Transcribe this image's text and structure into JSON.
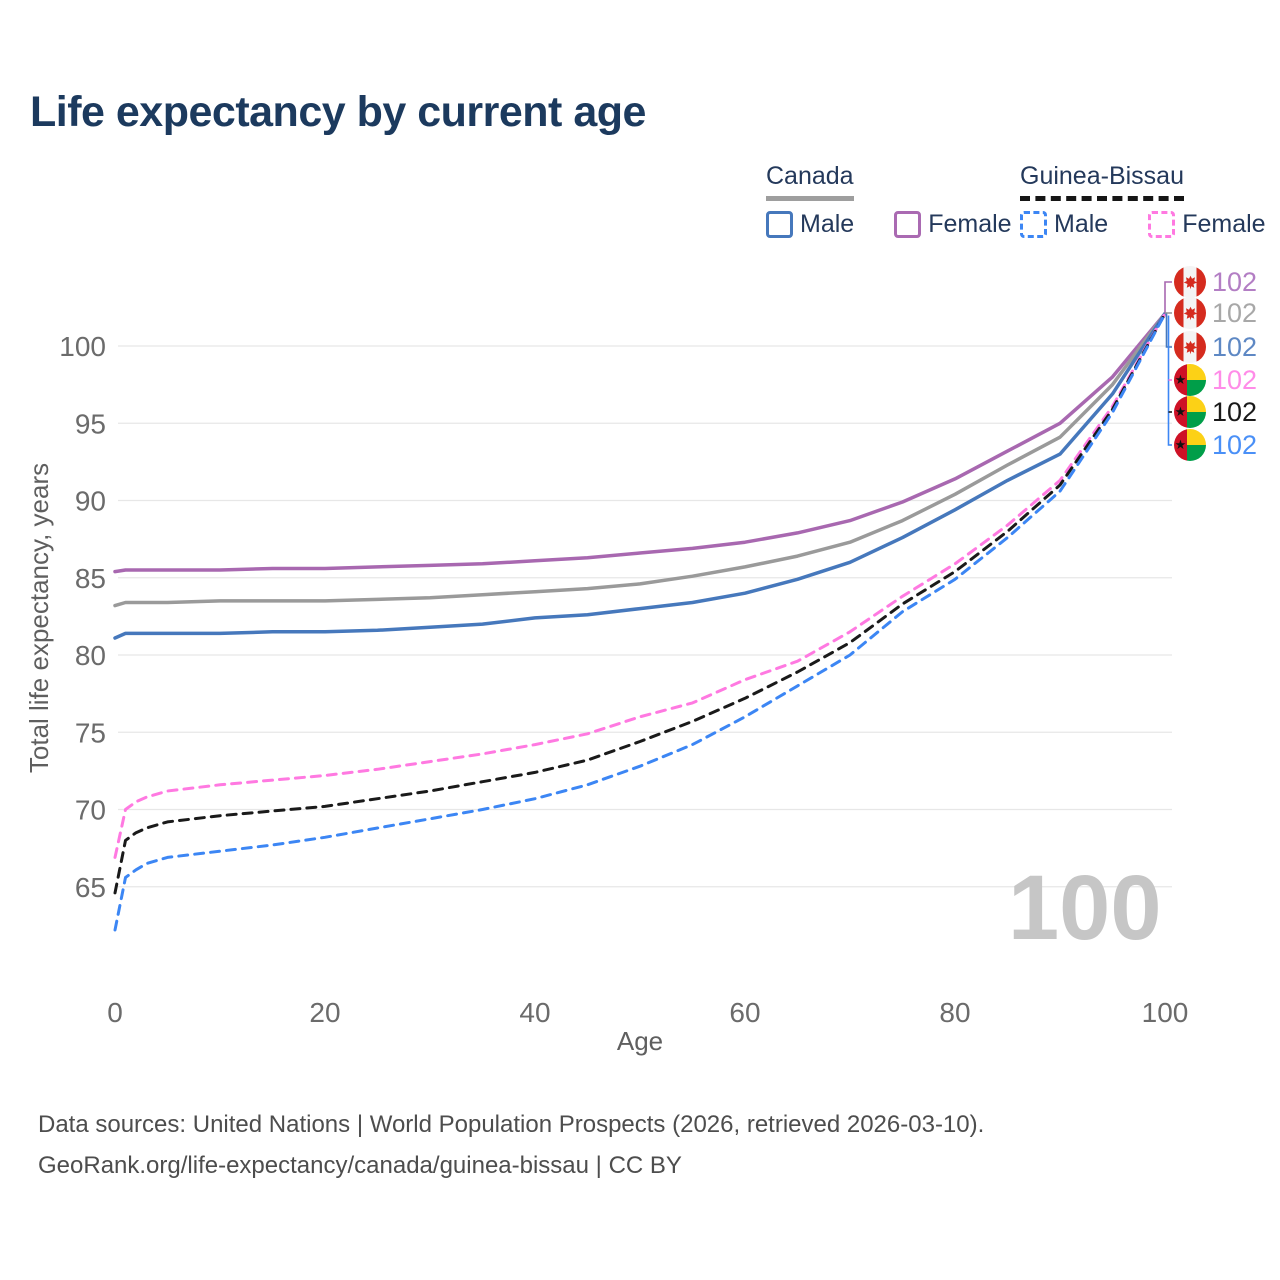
{
  "title": "Life expectancy by current age",
  "legend": {
    "groups": [
      {
        "label": "Canada",
        "line_style": "solid",
        "underline_color": "#9e9e9e",
        "items": [
          {
            "label": "Male",
            "color": "#4678bc",
            "dash": false
          },
          {
            "label": "Female",
            "color": "#aa6ab2",
            "dash": false
          }
        ]
      },
      {
        "label": "Guinea-Bissau",
        "line_style": "dashed",
        "underline_color": "#161616",
        "items": [
          {
            "label": "Male",
            "color": "#3c86f4",
            "dash": true
          },
          {
            "label": "Female",
            "color": "#ff79e1",
            "dash": true
          }
        ]
      }
    ]
  },
  "chart_data": {
    "type": "line",
    "title": "Life expectancy by current age",
    "xlabel": "Age",
    "ylabel": "Total life expectancy, years",
    "xticks": [
      0,
      20,
      40,
      60,
      80,
      100
    ],
    "yticks": [
      65,
      70,
      75,
      80,
      85,
      90,
      95,
      100
    ],
    "xlim": [
      0,
      100
    ],
    "ylim": [
      62,
      103
    ],
    "grid": "horizontal",
    "x": [
      0,
      1,
      2,
      3,
      5,
      10,
      15,
      20,
      25,
      30,
      35,
      40,
      45,
      50,
      55,
      60,
      65,
      70,
      75,
      80,
      85,
      90,
      95,
      100
    ],
    "series": [
      {
        "name": "Canada Female",
        "country": "Canada",
        "sex": "Female",
        "color": "#a868b0",
        "dash": false,
        "end_label": "102",
        "values": [
          85.4,
          85.5,
          85.5,
          85.5,
          85.5,
          85.5,
          85.6,
          85.6,
          85.7,
          85.8,
          85.9,
          86.1,
          86.3,
          86.6,
          86.9,
          87.3,
          87.9,
          88.7,
          89.9,
          91.4,
          93.2,
          95.0,
          98.0,
          102.1
        ]
      },
      {
        "name": "Canada (both sexes)",
        "country": "Canada",
        "sex": "Both",
        "color": "#9a9a9a",
        "dash": false,
        "end_label": "102",
        "values": [
          83.2,
          83.4,
          83.4,
          83.4,
          83.4,
          83.5,
          83.5,
          83.5,
          83.6,
          83.7,
          83.9,
          84.1,
          84.3,
          84.6,
          85.1,
          85.7,
          86.4,
          87.3,
          88.7,
          90.4,
          92.3,
          94.1,
          97.5,
          102.1
        ]
      },
      {
        "name": "Canada Male",
        "country": "Canada",
        "sex": "Male",
        "color": "#4678bc",
        "dash": false,
        "end_label": "102",
        "values": [
          81.1,
          81.4,
          81.4,
          81.4,
          81.4,
          81.4,
          81.5,
          81.5,
          81.6,
          81.8,
          82.0,
          82.4,
          82.6,
          83.0,
          83.4,
          84.0,
          84.9,
          86.0,
          87.6,
          89.4,
          91.3,
          93.0,
          96.9,
          102.1
        ]
      },
      {
        "name": "Guinea-Bissau Female",
        "country": "Guinea-Bissau",
        "sex": "Female",
        "color": "#ff79e1",
        "dash": true,
        "end_label": "102",
        "values": [
          66.9,
          70.0,
          70.5,
          70.8,
          71.2,
          71.6,
          71.9,
          72.2,
          72.6,
          73.1,
          73.6,
          74.2,
          74.9,
          76.0,
          76.9,
          78.4,
          79.6,
          81.5,
          83.8,
          85.9,
          88.4,
          91.3,
          96.1,
          102.1
        ]
      },
      {
        "name": "Guinea-Bissau (both sexes)",
        "country": "Guinea-Bissau",
        "sex": "Both",
        "color": "#1a1a1a",
        "dash": true,
        "end_label": "102",
        "values": [
          64.6,
          68.0,
          68.5,
          68.8,
          69.2,
          69.6,
          69.9,
          70.2,
          70.7,
          71.2,
          71.8,
          72.4,
          73.2,
          74.4,
          75.7,
          77.2,
          78.9,
          80.8,
          83.3,
          85.4,
          88.0,
          91.0,
          95.9,
          102.1
        ]
      },
      {
        "name": "Guinea-Bissau Male",
        "country": "Guinea-Bissau",
        "sex": "Male",
        "color": "#3c86f4",
        "dash": true,
        "end_label": "102",
        "values": [
          62.2,
          65.6,
          66.1,
          66.5,
          66.9,
          67.3,
          67.7,
          68.2,
          68.8,
          69.4,
          70.0,
          70.7,
          71.6,
          72.8,
          74.2,
          76.0,
          78.0,
          80.0,
          82.8,
          84.9,
          87.6,
          90.6,
          95.7,
          102.1
        ]
      }
    ]
  },
  "end_labels": [
    {
      "flag": "canada",
      "country": "Canada",
      "value": "102",
      "label_color": "#b37ec4"
    },
    {
      "flag": "canada",
      "country": "Canada",
      "value": "102",
      "label_color": "#a8a8a8"
    },
    {
      "flag": "canada",
      "country": "Canada",
      "value": "102",
      "label_color": "#5e88c4"
    },
    {
      "flag": "gb",
      "country": "Guinea-Bissau",
      "value": "102",
      "label_color": "#ff8ce8"
    },
    {
      "flag": "gb",
      "country": "Guinea-Bissau",
      "value": "102",
      "label_color": "#1a1a1a"
    },
    {
      "flag": "gb",
      "country": "Guinea-Bissau",
      "value": "102",
      "label_color": "#4a90f7"
    }
  ],
  "watermark": "100",
  "footer": {
    "line1": "Data sources: United Nations | World Population Prospects (2026, retrieved 2026-03-10).",
    "line2": "GeoRank.org/life-expectancy/canada/guinea-bissau | CC BY"
  }
}
